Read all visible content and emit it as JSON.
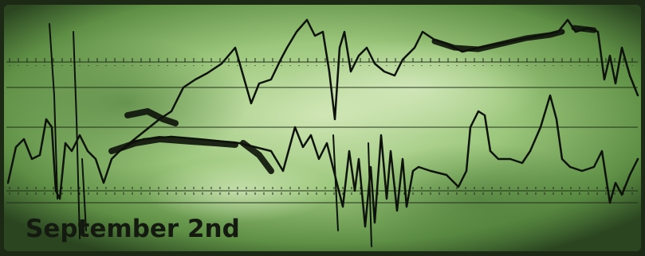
{
  "caption": "September 2nd"
}
